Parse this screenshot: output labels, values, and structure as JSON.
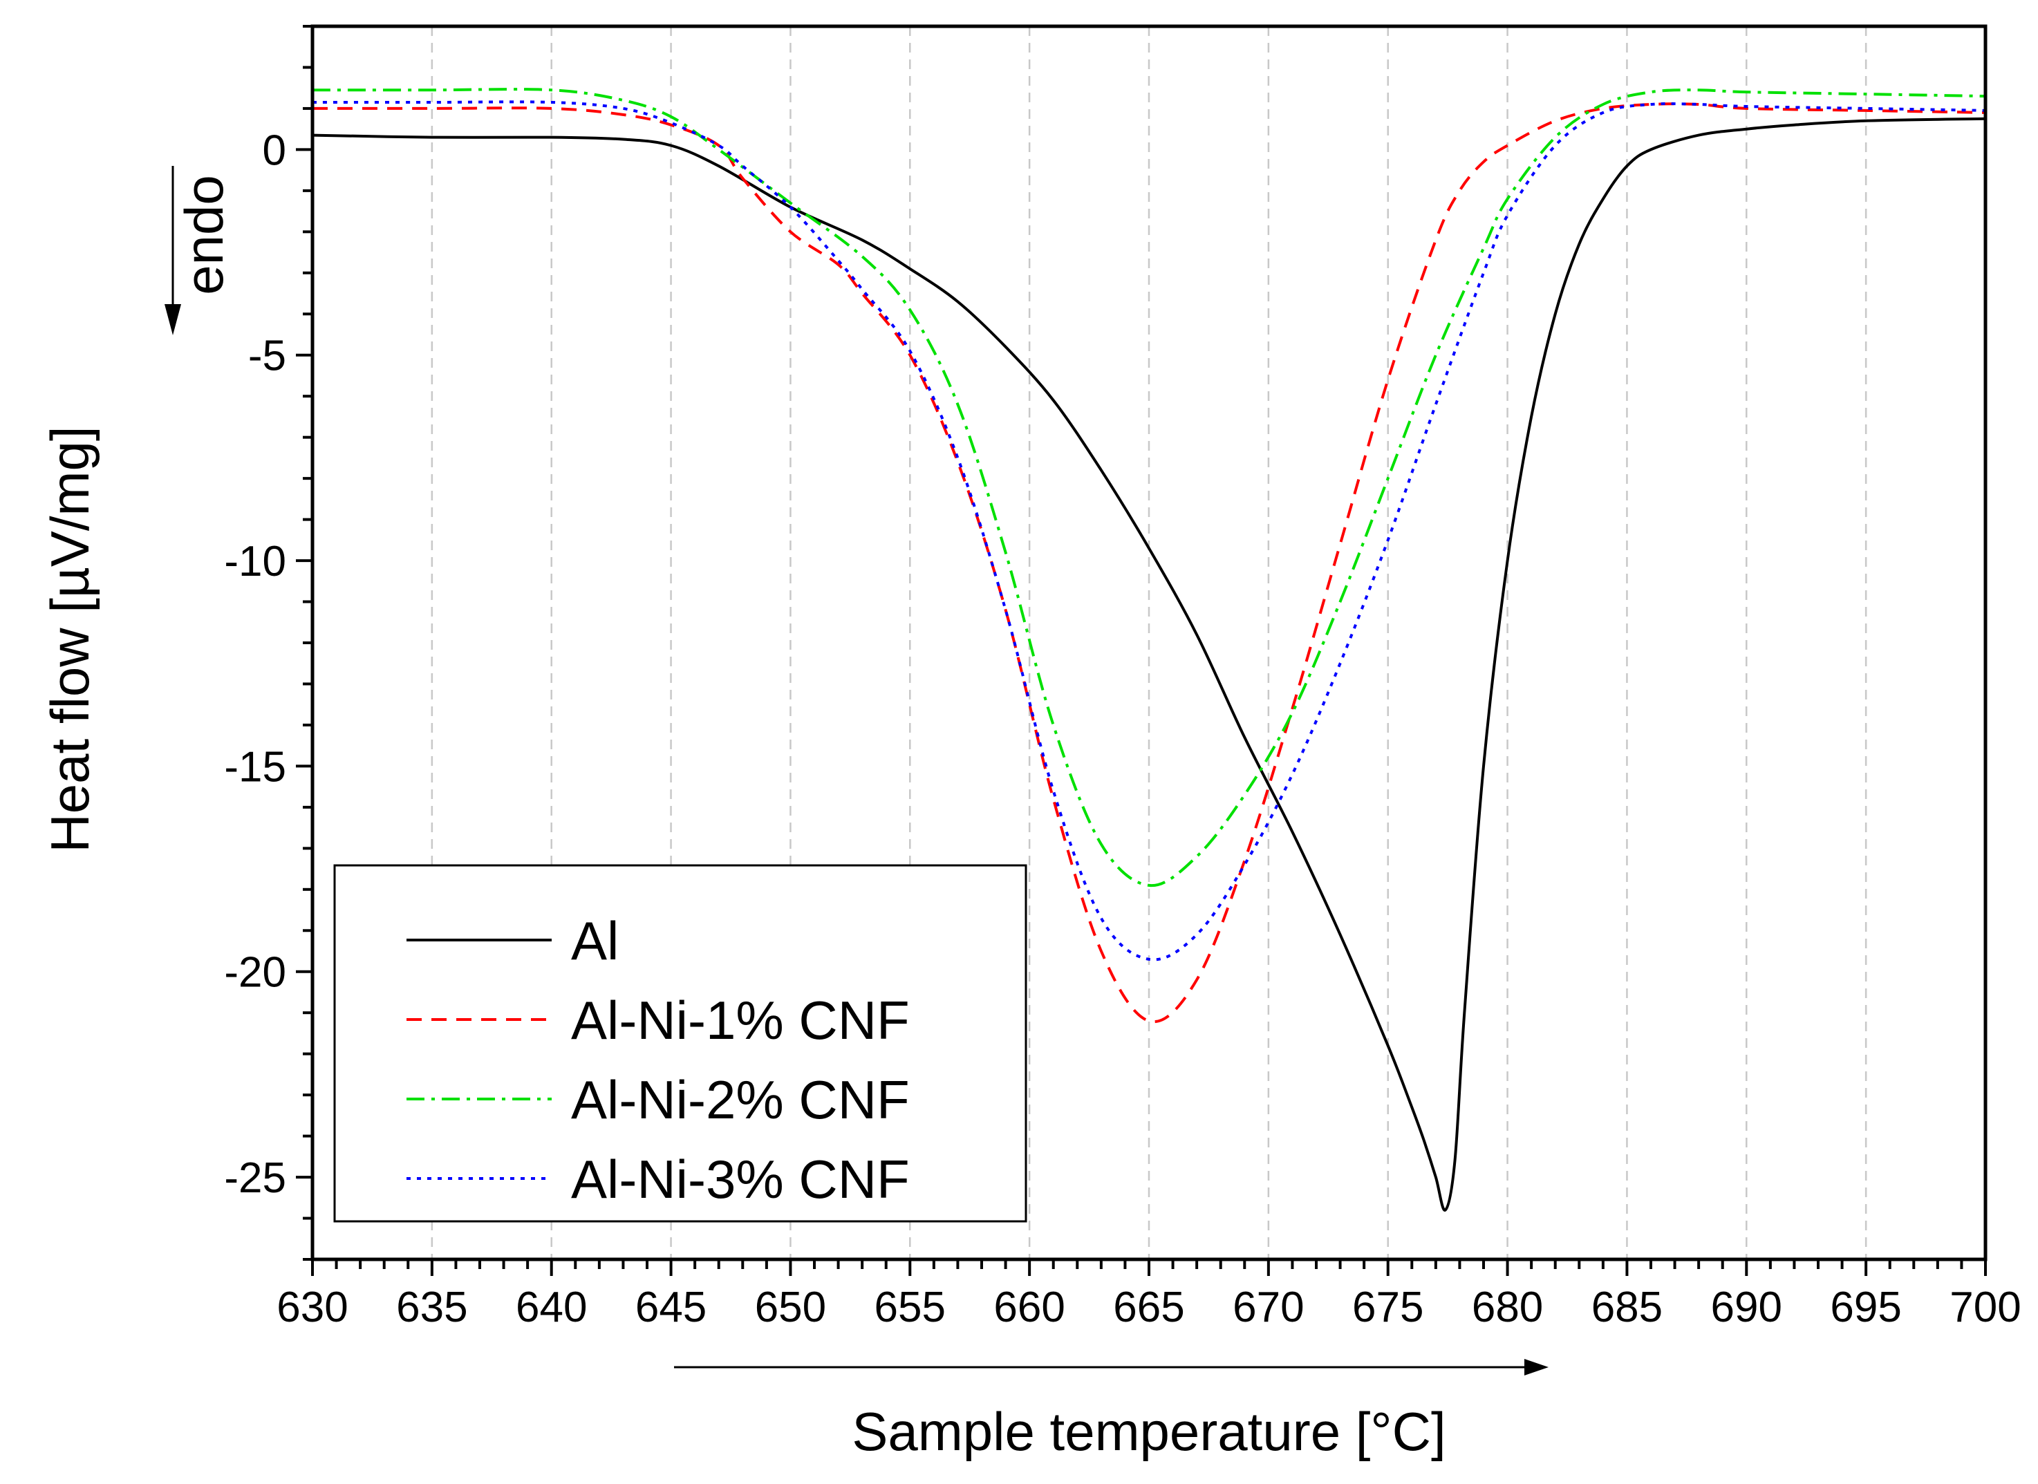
{
  "chart_data": {
    "type": "line",
    "title": "",
    "xlabel": "Sample temperature [°C]",
    "ylabel": "Heat flow [µV/mg]",
    "endo_label": "endo",
    "xlim": [
      630,
      700
    ],
    "ylim": [
      -27,
      3
    ],
    "x_ticks": [
      630,
      635,
      640,
      645,
      650,
      655,
      660,
      665,
      670,
      675,
      680,
      685,
      690,
      695,
      700
    ],
    "y_ticks": [
      0,
      -5,
      -10,
      -15,
      -20,
      -25
    ],
    "grid": "vertical dashed at major x ticks",
    "legend_position": "bottom-left",
    "series": [
      {
        "name": "Al",
        "color": "#000000",
        "style": "solid",
        "x": [
          630,
          635,
          640,
          643,
          645,
          647,
          650,
          653,
          655,
          657,
          659,
          661,
          663,
          665,
          667,
          669,
          671,
          673,
          675,
          676,
          676.5,
          677,
          677.4,
          677.8,
          678.2,
          679,
          680,
          681,
          682,
          683,
          684,
          685,
          686,
          688,
          690,
          692,
          695,
          700
        ],
        "y": [
          0.35,
          0.3,
          0.3,
          0.25,
          0.1,
          -0.4,
          -1.4,
          -2.2,
          -2.9,
          -3.7,
          -4.8,
          -6.1,
          -7.8,
          -9.7,
          -11.8,
          -14.3,
          -16.6,
          -19.1,
          -21.8,
          -23.3,
          -24.1,
          -25.0,
          -25.8,
          -24.6,
          -21.0,
          -15.0,
          -10.0,
          -6.5,
          -4.0,
          -2.3,
          -1.2,
          -0.4,
          0.0,
          0.35,
          0.5,
          0.6,
          0.7,
          0.75
        ]
      },
      {
        "name": "Al-Ni-1% CNF",
        "color": "#ff0000",
        "style": "dashed",
        "x": [
          630,
          635,
          640,
          643,
          645,
          647,
          648,
          650,
          652,
          653,
          655,
          657,
          659,
          661,
          663,
          665,
          667,
          669,
          671,
          673,
          675,
          677,
          678,
          679,
          680,
          682,
          684,
          686,
          688,
          690,
          695,
          700
        ],
        "y": [
          1.0,
          1.0,
          1.0,
          0.85,
          0.6,
          0.1,
          -0.7,
          -2.0,
          -2.8,
          -3.5,
          -5.0,
          -7.6,
          -11.2,
          -15.8,
          -19.5,
          -21.2,
          -20.2,
          -17.3,
          -13.6,
          -9.6,
          -5.6,
          -2.2,
          -1.0,
          -0.3,
          0.1,
          0.7,
          1.0,
          1.1,
          1.1,
          1.0,
          0.95,
          0.9
        ]
      },
      {
        "name": "Al-Ni-2% CNF",
        "color": "#00e000",
        "style": "dashdot",
        "x": [
          630,
          635,
          640,
          643,
          645,
          647,
          650,
          653,
          655,
          657,
          659,
          661,
          663,
          665,
          667,
          669,
          671,
          673,
          675,
          677,
          679,
          680,
          682,
          684,
          686,
          688,
          690,
          695,
          700
        ],
        "y": [
          1.45,
          1.45,
          1.45,
          1.2,
          0.8,
          0.0,
          -1.3,
          -2.6,
          -3.9,
          -6.2,
          -9.8,
          -14.0,
          -16.9,
          -17.9,
          -17.2,
          -15.7,
          -13.7,
          -11.0,
          -8.0,
          -5.0,
          -2.4,
          -1.2,
          0.3,
          1.1,
          1.4,
          1.45,
          1.4,
          1.35,
          1.3
        ]
      },
      {
        "name": "Al-Ni-3% CNF",
        "color": "#0000ff",
        "style": "dotted",
        "x": [
          630,
          635,
          640,
          643,
          645,
          647,
          648,
          650,
          652,
          653,
          655,
          657,
          659,
          661,
          663,
          665,
          667,
          669,
          671,
          673,
          675,
          677,
          679,
          680,
          682,
          684,
          686,
          688,
          690,
          695,
          700
        ],
        "y": [
          1.15,
          1.15,
          1.15,
          1.0,
          0.65,
          0.1,
          -0.4,
          -1.4,
          -2.7,
          -3.4,
          -4.9,
          -7.5,
          -11.2,
          -15.6,
          -18.7,
          -19.7,
          -19.1,
          -17.4,
          -15.2,
          -12.5,
          -9.5,
          -6.2,
          -3.0,
          -1.6,
          0.1,
          0.9,
          1.1,
          1.1,
          1.05,
          1.0,
          0.95
        ]
      }
    ]
  }
}
